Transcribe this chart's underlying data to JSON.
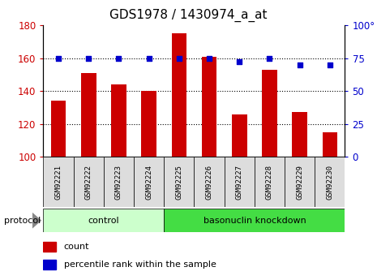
{
  "title": "GDS1978 / 1430974_a_at",
  "samples": [
    "GSM92221",
    "GSM92222",
    "GSM92223",
    "GSM92224",
    "GSM92225",
    "GSM92226",
    "GSM92227",
    "GSM92228",
    "GSM92229",
    "GSM92230"
  ],
  "count_values": [
    134,
    151,
    144,
    140,
    175,
    161,
    126,
    153,
    127,
    115
  ],
  "percentile_values": [
    75,
    75,
    75,
    75,
    75,
    75,
    72,
    75,
    70,
    70
  ],
  "bar_color": "#cc0000",
  "dot_color": "#0000cc",
  "ylim_left": [
    100,
    180
  ],
  "ylim_right": [
    0,
    100
  ],
  "yticks_left": [
    100,
    120,
    140,
    160,
    180
  ],
  "yticks_right": [
    0,
    25,
    50,
    75,
    100
  ],
  "groups": [
    {
      "label": "control",
      "n_samples": 4,
      "color": "#ccffcc"
    },
    {
      "label": "basonuclin knockdown",
      "n_samples": 6,
      "color": "#44dd44"
    }
  ],
  "protocol_label": "protocol",
  "legend_items": [
    {
      "label": "count",
      "color": "#cc0000"
    },
    {
      "label": "percentile rank within the sample",
      "color": "#0000cc"
    }
  ],
  "background_color": "#ffffff",
  "title_fontsize": 11,
  "bar_width": 0.5,
  "sample_box_color": "#dddddd",
  "grid_yticks": [
    120,
    140,
    160
  ]
}
